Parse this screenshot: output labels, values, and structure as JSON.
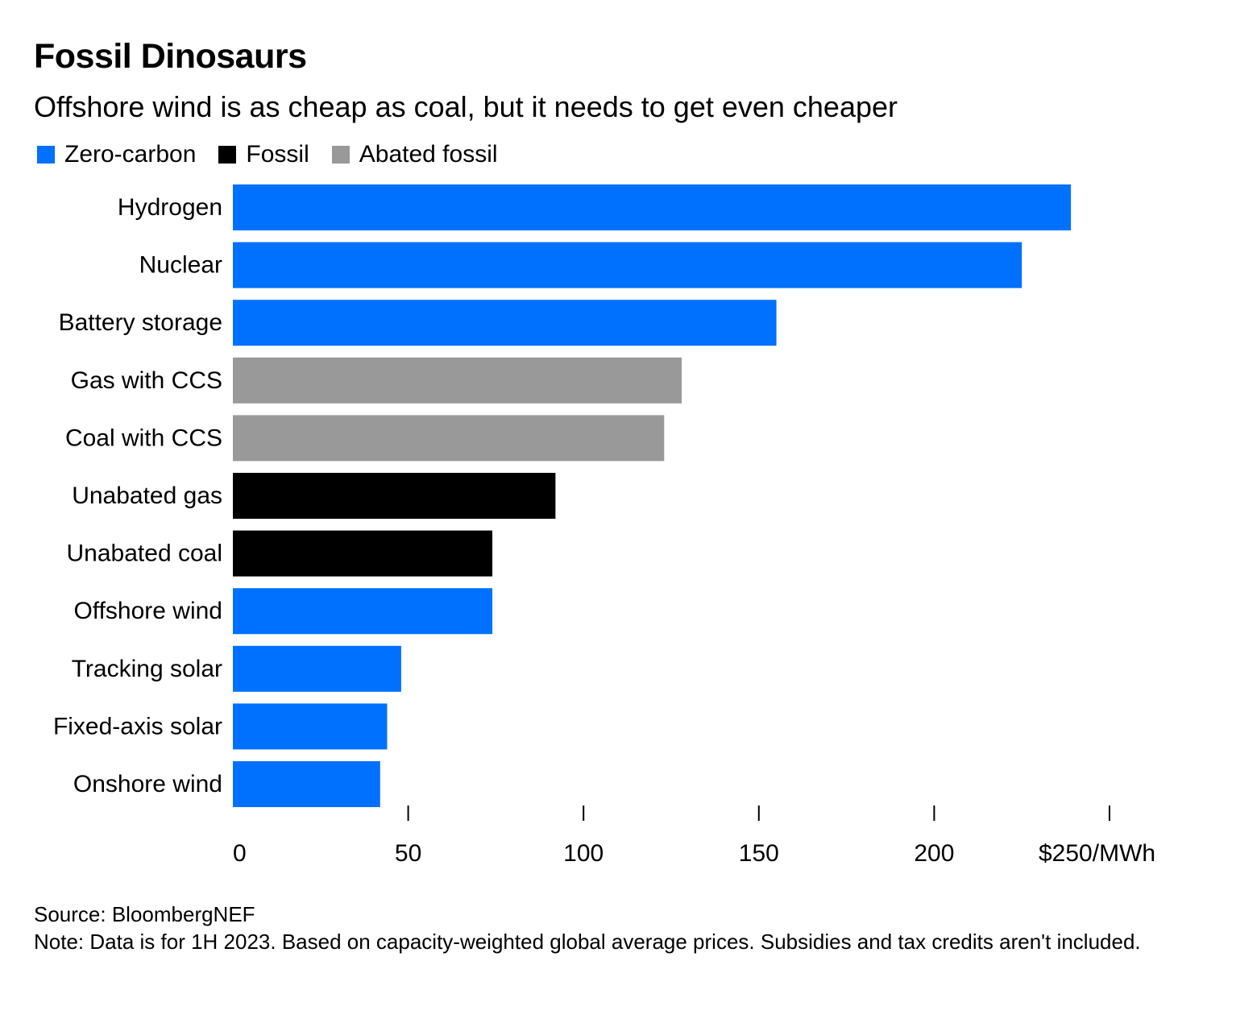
{
  "title": "Fossil Dinosaurs",
  "subtitle": "Offshore wind is as cheap as coal, but it needs to get even cheaper",
  "legend": [
    {
      "label": "Zero-carbon",
      "color": "#0070ff"
    },
    {
      "label": "Fossil",
      "color": "#000000"
    },
    {
      "label": "Abated fossil",
      "color": "#999999"
    }
  ],
  "chart_data": {
    "type": "bar",
    "orientation": "horizontal",
    "title": "Fossil Dinosaurs",
    "subtitle": "Offshore wind is as cheap as coal, but it needs to get even cheaper",
    "xlabel": "$/MWh",
    "ylabel": "",
    "xlim": [
      0,
      250
    ],
    "x_ticks": [
      0,
      50,
      100,
      150,
      200,
      250
    ],
    "x_tick_labels": [
      "0",
      "50",
      "100",
      "150",
      "200",
      "$250/MWh"
    ],
    "grid": false,
    "legend_position": "top-left",
    "categories": [
      "Hydrogen",
      "Nuclear",
      "Battery storage",
      "Gas with CCS",
      "Coal with CCS",
      "Unabated gas",
      "Unabated coal",
      "Offshore wind",
      "Tracking solar",
      "Fixed-axis solar",
      "Onshore wind"
    ],
    "values": [
      239,
      225,
      155,
      128,
      123,
      92,
      74,
      74,
      48,
      44,
      42
    ],
    "groups": [
      "Zero-carbon",
      "Zero-carbon",
      "Zero-carbon",
      "Abated fossil",
      "Abated fossil",
      "Fossil",
      "Fossil",
      "Zero-carbon",
      "Zero-carbon",
      "Zero-carbon",
      "Zero-carbon"
    ],
    "group_colors": {
      "Zero-carbon": "#0070ff",
      "Fossil": "#000000",
      "Abated fossil": "#999999"
    }
  },
  "footer": {
    "source": "Source: BloombergNEF",
    "note": "Note: Data is for 1H 2023. Based on capacity-weighted global average prices. Subsidies and tax credits aren't included."
  }
}
